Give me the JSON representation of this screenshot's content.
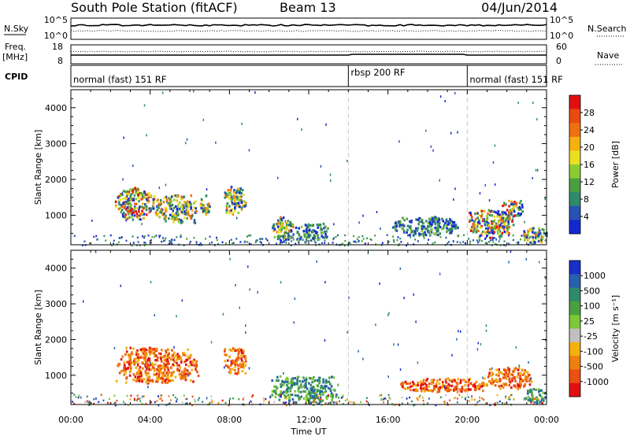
{
  "header": {
    "title": "South Pole Station (fitACF)",
    "beam": "Beam 13",
    "date": "04/Jun/2014"
  },
  "nsky_panel": {
    "left_label": "N.Sky",
    "right_label": "N.Search",
    "left_ticks": [
      "10^5",
      "10^0"
    ],
    "right_ticks": [
      "10^5",
      "10^0"
    ]
  },
  "freq_panel": {
    "left_label": "Freq.",
    "left_unit": "[MHz]",
    "right_label": "Nave",
    "left_ticks": [
      "18",
      "8"
    ],
    "right_ticks": [
      "60",
      "0"
    ]
  },
  "cpid": {
    "label": "CPID",
    "modes": [
      {
        "name": "normal (fast) 151 RF",
        "start_hour": 0,
        "end_hour": 14
      },
      {
        "name": "rbsp 200 RF",
        "start_hour": 14,
        "end_hour": 20
      },
      {
        "name": "normal (fast) 151 RF",
        "start_hour": 20,
        "end_hour": 24
      }
    ]
  },
  "chart_data": [
    {
      "type": "heatmap",
      "name": "power",
      "ylabel": "Slant Range [km]",
      "xlabel": "",
      "x_ticks": [
        "00:00",
        "04:00",
        "08:00",
        "12:00",
        "16:00",
        "20:00",
        "00:00"
      ],
      "x_range_hours": [
        0,
        24
      ],
      "ylim": [
        180,
        4500
      ],
      "y_ticks": [
        1000,
        2000,
        3000,
        4000
      ],
      "mode_boundaries_hours": [
        14,
        20
      ],
      "colorbar": {
        "label": "Power [dB]",
        "ticks": [
          "4",
          "8",
          "12",
          "16",
          "20",
          "24",
          "28"
        ],
        "colors": [
          "#1428d2",
          "#2852b4",
          "#2e8a6a",
          "#4aa040",
          "#8ccc32",
          "#e8e020",
          "#f4b010",
          "#ee7010",
          "#ea4a10",
          "#e01010"
        ]
      },
      "echo_regions": [
        {
          "t0": 2.2,
          "t1": 4.2,
          "r0": 900,
          "r1": 1800,
          "level": "high"
        },
        {
          "t0": 4.2,
          "t1": 6.3,
          "r0": 800,
          "r1": 1600,
          "level": "medium"
        },
        {
          "t0": 6.5,
          "t1": 7.0,
          "r0": 1050,
          "r1": 1600,
          "level": "medium"
        },
        {
          "t0": 7.7,
          "t1": 8.8,
          "r0": 1050,
          "r1": 1850,
          "level": "medium"
        },
        {
          "t0": 10.1,
          "t1": 11.2,
          "r0": 300,
          "r1": 1000,
          "level": "medium"
        },
        {
          "t0": 11.2,
          "t1": 13.0,
          "r0": 350,
          "r1": 800,
          "level": "low"
        },
        {
          "t0": 16.2,
          "t1": 19.5,
          "r0": 450,
          "r1": 1000,
          "level": "low"
        },
        {
          "t0": 20.0,
          "t1": 22.3,
          "r0": 400,
          "r1": 1200,
          "level": "high"
        },
        {
          "t0": 21.6,
          "t1": 22.8,
          "r0": 950,
          "r1": 1450,
          "level": "high"
        },
        {
          "t0": 22.8,
          "t1": 24.0,
          "r0": 250,
          "r1": 700,
          "level": "medium"
        }
      ]
    },
    {
      "type": "heatmap",
      "name": "velocity",
      "ylabel": "Slant Range [km]",
      "xlabel": "Time UT",
      "x_ticks": [
        "00:00",
        "04:00",
        "08:00",
        "12:00",
        "16:00",
        "20:00",
        "00:00"
      ],
      "x_range_hours": [
        0,
        24
      ],
      "ylim": [
        180,
        4500
      ],
      "y_ticks": [
        1000,
        2000,
        3000,
        4000
      ],
      "mode_boundaries_hours": [
        14,
        20
      ],
      "colorbar": {
        "label": "Velocity [m s^-1]",
        "unit_superscript": "-1",
        "ticks": [
          "1000",
          "500",
          "100",
          "25",
          "-25",
          "-100",
          "-500",
          "-1000"
        ],
        "colors": [
          "#1830c8",
          "#2860b0",
          "#2e8a6a",
          "#4aa040",
          "#7cc838",
          "#c0c0c0",
          "#f4b010",
          "#ee8010",
          "#ea5010",
          "#e01010"
        ]
      },
      "echo_regions": [
        {
          "t0": 2.2,
          "t1": 6.4,
          "r0": 800,
          "r1": 1800,
          "level": "negative"
        },
        {
          "t0": 7.7,
          "t1": 8.8,
          "r0": 1050,
          "r1": 1800,
          "level": "negative"
        },
        {
          "t0": 10.1,
          "t1": 13.5,
          "r0": 250,
          "r1": 1000,
          "level": "positive"
        },
        {
          "t0": 16.5,
          "t1": 21.0,
          "r0": 550,
          "r1": 950,
          "level": "negative"
        },
        {
          "t0": 21.0,
          "t1": 23.2,
          "r0": 650,
          "r1": 1250,
          "level": "negative"
        },
        {
          "t0": 22.8,
          "t1": 24.0,
          "r0": 250,
          "r1": 650,
          "level": "positive"
        }
      ]
    }
  ]
}
